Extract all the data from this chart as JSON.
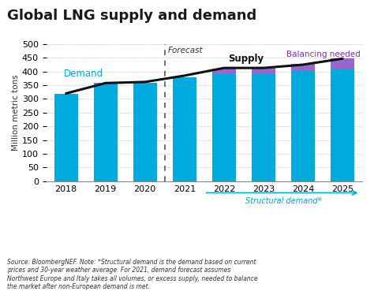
{
  "title": "Global LNG supply and demand",
  "ylabel": "Million metric tons",
  "years": [
    2018,
    2019,
    2020,
    2021,
    2022,
    2023,
    2024,
    2025
  ],
  "structural_demand": [
    320,
    360,
    360,
    380,
    390,
    392,
    402,
    412
  ],
  "balancing_needed": [
    0,
    0,
    0,
    0,
    22,
    22,
    25,
    35
  ],
  "supply_line": [
    320,
    358,
    362,
    385,
    413,
    413,
    425,
    447
  ],
  "bar_color_blue": "#00AADD",
  "bar_color_purple": "#9966CC",
  "supply_line_color": "#111111",
  "demand_label_color": "#00AADD",
  "balancing_label_color": "#7B2FBE",
  "ylim": [
    0,
    500
  ],
  "yticks": [
    0,
    50,
    100,
    150,
    200,
    250,
    300,
    350,
    400,
    450,
    500
  ],
  "source_text": "Source: BloombergNEF. Note: *Structural demand is the demand based on current\nprices and 30-year weather average. For 2021, demand forecast assumes\nNorthwest Europe and Italy takes all volumes, or excess supply, needed to balance\nthe market after non-European demand is met.",
  "title_color": "#1a1a1a",
  "title_fontsize": 13,
  "axis_fontsize": 8,
  "background_color": "#FFFFFF",
  "grid_color": "#CCCCCC"
}
